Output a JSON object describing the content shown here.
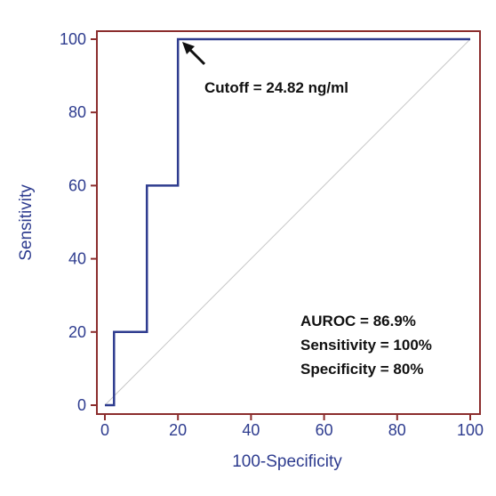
{
  "chart_data": {
    "type": "line",
    "xlabel": "100-Specificity",
    "ylabel": "Sensitivity",
    "xlim": [
      0,
      100
    ],
    "ylim": [
      0,
      100
    ],
    "x_ticks": [
      0,
      20,
      40,
      60,
      80,
      100
    ],
    "y_ticks": [
      0,
      20,
      40,
      60,
      80,
      100
    ],
    "grid": false,
    "series": [
      {
        "x": [
          0,
          2.5,
          2.5,
          11.5,
          11.5,
          20,
          20,
          100
        ],
        "y": [
          0,
          0,
          20,
          20,
          60,
          60,
          100,
          100
        ]
      },
      {
        "x": [
          0,
          100
        ],
        "y": [
          0,
          100
        ]
      }
    ],
    "annotations": {
      "cutoff": {
        "text": "Cutoff = 24.82 ng/ml",
        "points_to": [
          20,
          100
        ]
      },
      "auroc": "AUROC = 86.9%",
      "sensitivity": "Sensitivity = 100%",
      "specificity": "Specificity = 80%"
    },
    "colors": {
      "roc_line": "#2e3c8f",
      "reference_line": "#c8c8c8",
      "frame": "#8b2d2d",
      "axis_text": "#2e3c8f",
      "annotation_text": "#111111"
    }
  }
}
